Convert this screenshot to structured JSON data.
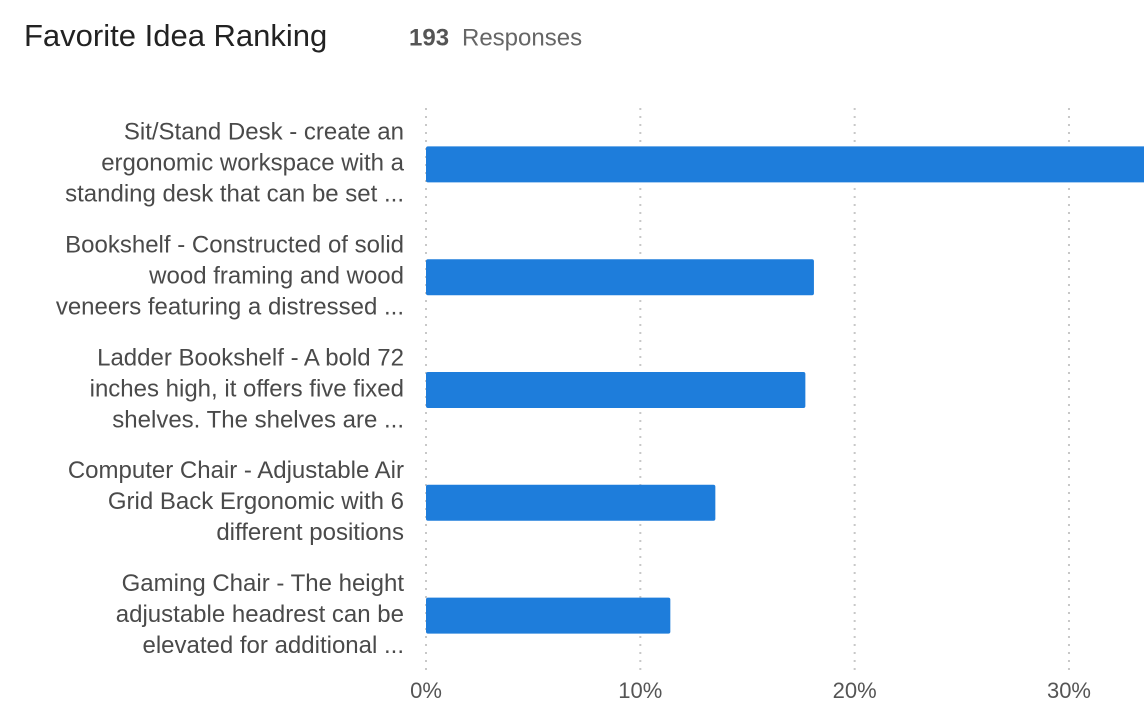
{
  "chart_data": {
    "type": "hbar",
    "title": "Favorite Idea Ranking",
    "responses": 193,
    "responses_label": "Responses",
    "categories": [
      [
        "Sit/Stand Desk - create an",
        "ergonomic workspace with a",
        "standing desk that can be set ..."
      ],
      [
        "Bookshelf - Constructed of solid",
        "wood framing and wood",
        "veneers featuring a distressed ..."
      ],
      [
        "Ladder Bookshelf - A bold 72",
        "inches high, it offers five fixed",
        "shelves. The shelves are ..."
      ],
      [
        "Computer Chair - Adjustable Air",
        "Grid Back Ergonomic with 6",
        "different positions"
      ],
      [
        "Gaming Chair - The height",
        "adjustable headrest can be",
        "elevated for additional ..."
      ]
    ],
    "values": [
      34,
      18.1,
      17.7,
      13.5,
      11.4
    ],
    "color": "#1e7ddb",
    "xlim": [
      0,
      33.5
    ],
    "xticks": [
      {
        "value": 0,
        "label": "0%"
      },
      {
        "value": 10,
        "label": "10%"
      },
      {
        "value": 20,
        "label": "20%"
      },
      {
        "value": 30,
        "label": "30%"
      }
    ],
    "grid": true
  }
}
